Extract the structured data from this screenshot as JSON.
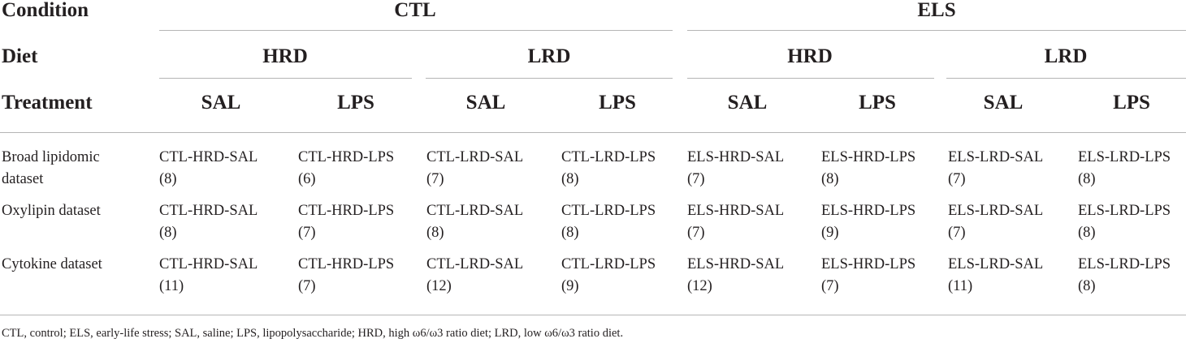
{
  "header": {
    "condition_label": "Condition",
    "diet_label": "Diet",
    "treatment_label": "Treatment",
    "conditions": [
      "CTL",
      "ELS"
    ],
    "diets": [
      "HRD",
      "LRD",
      "HRD",
      "LRD"
    ],
    "treatments": [
      "SAL",
      "LPS",
      "SAL",
      "LPS",
      "SAL",
      "LPS",
      "SAL",
      "LPS"
    ]
  },
  "rows": [
    {
      "label_line1": "Broad lipidomic",
      "label_line2": "dataset",
      "cells": [
        {
          "group": "CTL-HRD-SAL",
          "n": "(8)"
        },
        {
          "group": "CTL-HRD-LPS",
          "n": "(6)"
        },
        {
          "group": "CTL-LRD-SAL",
          "n": "(7)"
        },
        {
          "group": "CTL-LRD-LPS",
          "n": "(8)"
        },
        {
          "group": "ELS-HRD-SAL",
          "n": "(7)"
        },
        {
          "group": "ELS-HRD-LPS",
          "n": "(8)"
        },
        {
          "group": "ELS-LRD-SAL",
          "n": "(7)"
        },
        {
          "group": "ELS-LRD-LPS",
          "n": "(8)"
        }
      ]
    },
    {
      "label_line1": "Oxylipin dataset",
      "label_line2": "",
      "cells": [
        {
          "group": "CTL-HRD-SAL",
          "n": "(8)"
        },
        {
          "group": "CTL-HRD-LPS",
          "n": "(7)"
        },
        {
          "group": "CTL-LRD-SAL",
          "n": "(8)"
        },
        {
          "group": "CTL-LRD-LPS",
          "n": "(8)"
        },
        {
          "group": "ELS-HRD-SAL",
          "n": "(7)"
        },
        {
          "group": "ELS-HRD-LPS",
          "n": "(9)"
        },
        {
          "group": "ELS-LRD-SAL",
          "n": "(7)"
        },
        {
          "group": "ELS-LRD-LPS",
          "n": "(8)"
        }
      ]
    },
    {
      "label_line1": "Cytokine dataset",
      "label_line2": "",
      "cells": [
        {
          "group": "CTL-HRD-SAL",
          "n": "(11)"
        },
        {
          "group": "CTL-HRD-LPS",
          "n": "(7)"
        },
        {
          "group": "CTL-LRD-SAL",
          "n": "(12)"
        },
        {
          "group": "CTL-LRD-LPS",
          "n": "(9)"
        },
        {
          "group": "ELS-HRD-SAL",
          "n": "(12)"
        },
        {
          "group": "ELS-HRD-LPS",
          "n": "(7)"
        },
        {
          "group": "ELS-LRD-SAL",
          "n": "(11)"
        },
        {
          "group": "ELS-LRD-LPS",
          "n": "(8)"
        }
      ]
    }
  ],
  "footnote": "CTL, control; ELS, early-life stress; SAL, saline; LPS, lipopolysaccharide; HRD, high ω6/ω3 ratio diet; LRD, low ω6/ω3 ratio diet."
}
